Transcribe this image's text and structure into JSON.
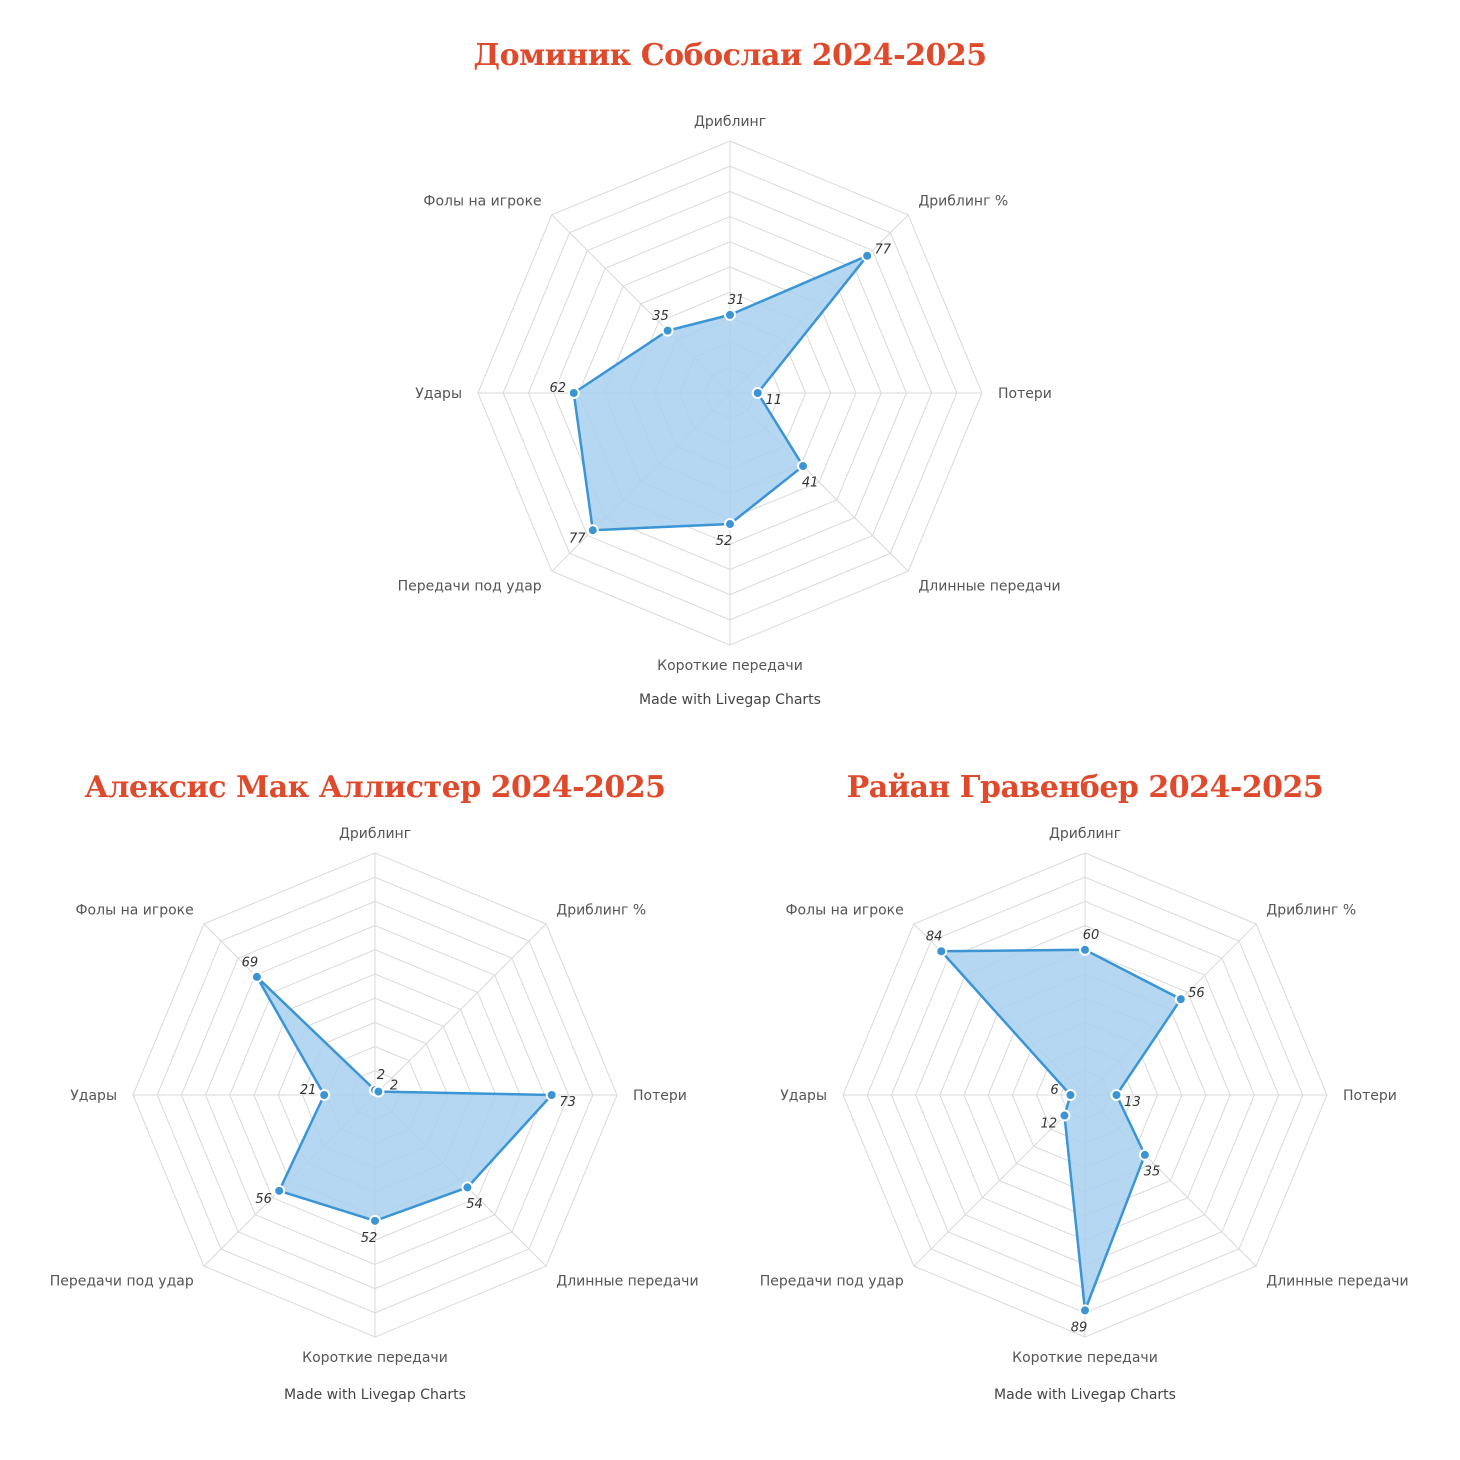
{
  "chart_data": [
    {
      "type": "radar",
      "title": "Доминик Собослаи 2024-2025",
      "categories": [
        "Дриблинг",
        "Дриблинг %",
        "Потери",
        "Длинные передачи",
        "Короткие передачи",
        "Передачи под удар",
        "Удары",
        "Фолы на игроке"
      ],
      "values": [
        31,
        77,
        11,
        41,
        52,
        77,
        62,
        35
      ],
      "rlim": [
        0,
        100
      ],
      "rings": 10,
      "credit": "Made with Livegap Charts",
      "color": "#3b95d4",
      "fill": "#a8d0ee"
    },
    {
      "type": "radar",
      "title": "Алексис Мак Аллистер 2024-2025",
      "categories": [
        "Дриблинг",
        "Дриблинг %",
        "Потери",
        "Длинные передачи",
        "Короткие передачи",
        "Передачи под удар",
        "Удары",
        "Фолы на игроке"
      ],
      "values": [
        2,
        2,
        73,
        54,
        52,
        56,
        21,
        69
      ],
      "rlim": [
        0,
        100
      ],
      "rings": 10,
      "credit": "Made with Livegap Charts",
      "color": "#3b95d4",
      "fill": "#a8d0ee"
    },
    {
      "type": "radar",
      "title": "Райан Гравенбер 2024-2025",
      "categories": [
        "Дриблинг",
        "Дриблинг %",
        "Потери",
        "Длинные передачи",
        "Короткие передачи",
        "Передачи под удар",
        "Удары",
        "Фолы на игроке"
      ],
      "values": [
        60,
        56,
        13,
        35,
        89,
        12,
        6,
        84
      ],
      "rlim": [
        0,
        100
      ],
      "rings": 10,
      "credit": "Made with Livegap Charts",
      "color": "#3b95d4",
      "fill": "#a8d0ee"
    }
  ],
  "colors": {
    "title": "#e04a2c",
    "grid": "#d9d9d9",
    "axis_label": "#555555"
  }
}
